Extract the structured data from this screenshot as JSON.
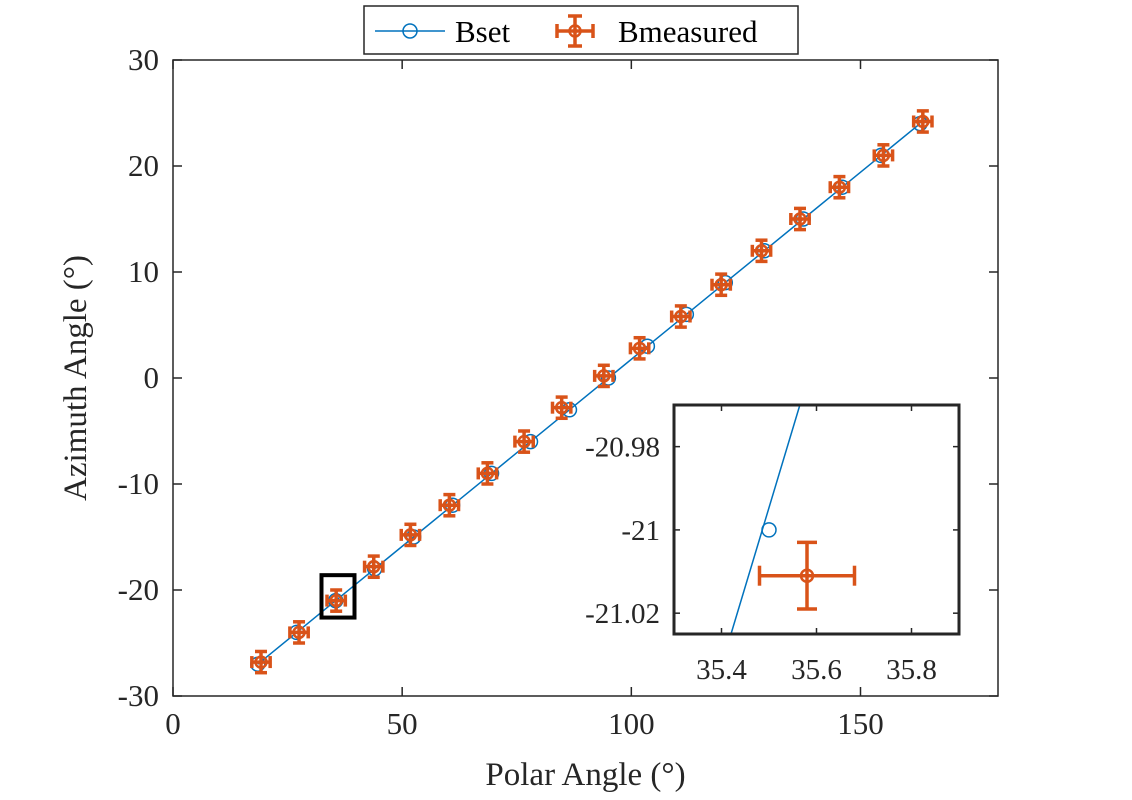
{
  "chart_data": {
    "type": "scatter",
    "title": "",
    "xlabel": "Polar Angle (°)",
    "ylabel": "Azimuth Angle (°)",
    "xlim": [
      0,
      180
    ],
    "ylim": [
      -30,
      30
    ],
    "xticks": [
      0,
      50,
      100,
      150
    ],
    "yticks": [
      -30,
      -20,
      -10,
      0,
      10,
      20,
      30
    ],
    "grid": false,
    "legend_position": "top-center-outside",
    "colors": {
      "Bset": "#0072BD",
      "Bmeasured": "#D95319"
    },
    "series": [
      {
        "name": "Bset",
        "style": "line-with-open-circles",
        "x": [
          18.5,
          27,
          35.5,
          44,
          52.5,
          61,
          69.5,
          78,
          86.5,
          95,
          103.5,
          112,
          120.5,
          129,
          137.5,
          146,
          154.5,
          163
        ],
        "y": [
          -27,
          -24,
          -21,
          -18,
          -15,
          -12,
          -9,
          -6,
          -3,
          0,
          3,
          6,
          9,
          12,
          15,
          18,
          21,
          24
        ]
      },
      {
        "name": "Bmeasured",
        "style": "circles-with-xy-errorbars",
        "x": [
          19.2,
          27.5,
          35.6,
          43.8,
          51.8,
          60.3,
          68.6,
          76.6,
          84.8,
          94.0,
          101.8,
          110.8,
          119.6,
          128.4,
          136.8,
          145.4,
          155.0,
          163.6
        ],
        "y": [
          -26.8,
          -24.0,
          -21.0,
          -17.8,
          -14.8,
          -12.0,
          -9.0,
          -6.0,
          -2.8,
          0.2,
          2.8,
          5.8,
          8.8,
          12.0,
          15.0,
          18.0,
          21.0,
          24.2
        ],
        "xerr": 2.0,
        "yerr": 1.0
      }
    ],
    "highlight_box": {
      "x": [
        32.4,
        39.6
      ],
      "y": [
        -22.6,
        -18.6
      ]
    },
    "inset": {
      "xlim": [
        35.3,
        35.9
      ],
      "ylim": [
        -21.025,
        -20.97
      ],
      "xticks": [
        35.4,
        35.6,
        35.8
      ],
      "yticks": [
        -21.02,
        -21,
        -20.98
      ],
      "xtick_labels": [
        "35.4",
        "35.6",
        "35.8"
      ],
      "ytick_labels": [
        "-21.02",
        "-21",
        "-20.98"
      ],
      "bset_line": {
        "x": [
          35.42,
          35.565
        ],
        "y": [
          -21.025,
          -20.97
        ]
      },
      "bset_point": {
        "x": 35.5,
        "y": -21
      },
      "bmeasured_point": {
        "x": 35.58,
        "y": -21.011,
        "xerr": 0.1,
        "yerr": 0.008
      }
    }
  }
}
